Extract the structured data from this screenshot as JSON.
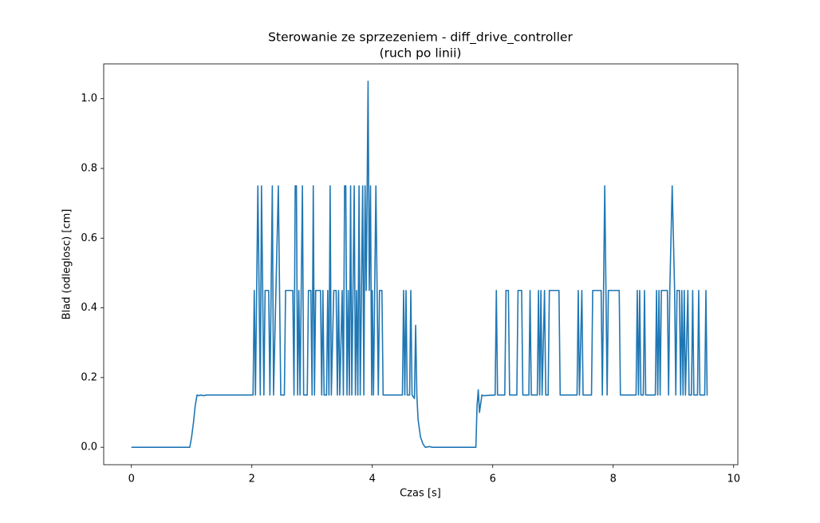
{
  "chart_data": {
    "type": "line",
    "title": "Sterowanie ze sprzezeniem - diff_drive_controller",
    "subtitle": "(ruch po linii)",
    "x_label": "Czas [s]",
    "y_label": "Blad (odleglosc) [cm]",
    "color": "#1f77b4",
    "xlim": [
      -0.46,
      10.07
    ],
    "ylim": [
      -0.05,
      1.1
    ],
    "xticks": [
      0,
      2,
      4,
      6,
      8,
      10
    ],
    "yticks": [
      {
        "value": 0,
        "label": "0.0"
      },
      0.2,
      0.4,
      0.6,
      0.8,
      {
        "value": 1,
        "label": "1.0"
      }
    ],
    "grid": false,
    "x": [
      0,
      0.97,
      1.0,
      1.03,
      1.06,
      1.09,
      1.12,
      1.15,
      1.2,
      1.25,
      2.02,
      2.04,
      2.06,
      2.08,
      2.1,
      2.12,
      2.14,
      2.16,
      2.18,
      2.2,
      2.22,
      2.28,
      2.3,
      2.34,
      2.36,
      2.4,
      2.44,
      2.46,
      2.48,
      2.54,
      2.56,
      2.68,
      2.7,
      2.72,
      2.74,
      2.76,
      2.78,
      2.8,
      2.84,
      2.86,
      2.92,
      2.94,
      2.98,
      3.0,
      3.02,
      3.04,
      3.06,
      3.14,
      3.16,
      3.18,
      3.2,
      3.24,
      3.26,
      3.28,
      3.3,
      3.32,
      3.36,
      3.4,
      3.42,
      3.44,
      3.46,
      3.5,
      3.52,
      3.54,
      3.56,
      3.58,
      3.6,
      3.62,
      3.64,
      3.66,
      3.68,
      3.7,
      3.72,
      3.74,
      3.76,
      3.78,
      3.8,
      3.82,
      3.84,
      3.86,
      3.88,
      3.9,
      3.93,
      3.95,
      3.97,
      3.99,
      4.0,
      4.02,
      4.04,
      4.06,
      4.08,
      4.1,
      4.12,
      4.16,
      4.18,
      4.5,
      4.52,
      4.54,
      4.56,
      4.58,
      4.62,
      4.64,
      4.66,
      4.7,
      4.72,
      4.74,
      4.76,
      4.8,
      4.84,
      4.88,
      4.95,
      5.0,
      5.72,
      5.74,
      5.76,
      5.78,
      5.82,
      5.84,
      6.04,
      6.06,
      6.08,
      6.2,
      6.22,
      6.26,
      6.28,
      6.4,
      6.42,
      6.48,
      6.5,
      6.6,
      6.62,
      6.64,
      6.74,
      6.76,
      6.78,
      6.8,
      6.82,
      6.86,
      6.88,
      6.92,
      6.94,
      7.1,
      7.12,
      7.4,
      7.42,
      7.44,
      7.48,
      7.5,
      7.64,
      7.66,
      7.8,
      7.82,
      7.86,
      7.88,
      7.9,
      7.92,
      8.1,
      8.12,
      8.38,
      8.4,
      8.42,
      8.44,
      8.46,
      8.5,
      8.52,
      8.54,
      8.7,
      8.72,
      8.74,
      8.76,
      8.78,
      8.8,
      8.9,
      8.92,
      8.94,
      8.98,
      9.02,
      9.04,
      9.06,
      9.1,
      9.12,
      9.14,
      9.16,
      9.18,
      9.2,
      9.24,
      9.26,
      9.3,
      9.32,
      9.34,
      9.4,
      9.42,
      9.44,
      9.52,
      9.54,
      9.56,
      9.57
    ],
    "values": [
      0,
      0,
      0.03,
      0.07,
      0.12,
      0.15,
      0.148,
      0.15,
      0.148,
      0.15,
      0.15,
      0.45,
      0.15,
      0.45,
      0.75,
      0.45,
      0.15,
      0.75,
      0.45,
      0.15,
      0.45,
      0.45,
      0.15,
      0.75,
      0.15,
      0.45,
      0.75,
      0.45,
      0.15,
      0.15,
      0.45,
      0.45,
      0.15,
      0.75,
      0.75,
      0.15,
      0.45,
      0.15,
      0.75,
      0.15,
      0.15,
      0.45,
      0.45,
      0.15,
      0.75,
      0.15,
      0.45,
      0.45,
      0.15,
      0.45,
      0.15,
      0.15,
      0.45,
      0.15,
      0.75,
      0.15,
      0.45,
      0.45,
      0.15,
      0.45,
      0.15,
      0.45,
      0.15,
      0.75,
      0.75,
      0.15,
      0.45,
      0.15,
      0.75,
      0.15,
      0.45,
      0.75,
      0.15,
      0.45,
      0.15,
      0.75,
      0.15,
      0.45,
      0.75,
      0.15,
      0.75,
      0.45,
      1.05,
      0.45,
      0.75,
      0.15,
      0.45,
      0.15,
      0.45,
      0.75,
      0.45,
      0.15,
      0.45,
      0.45,
      0.15,
      0.15,
      0.45,
      0.15,
      0.45,
      0.15,
      0.15,
      0.45,
      0.15,
      0.14,
      0.35,
      0.15,
      0.08,
      0.03,
      0.01,
      0,
      0.002,
      0,
      0,
      0.12,
      0.165,
      0.1,
      0.15,
      0.148,
      0.15,
      0.45,
      0.15,
      0.15,
      0.45,
      0.45,
      0.15,
      0.15,
      0.45,
      0.45,
      0.15,
      0.15,
      0.45,
      0.15,
      0.15,
      0.45,
      0.15,
      0.45,
      0.15,
      0.45,
      0.15,
      0.15,
      0.45,
      0.45,
      0.15,
      0.15,
      0.45,
      0.15,
      0.45,
      0.15,
      0.15,
      0.45,
      0.45,
      0.15,
      0.75,
      0.45,
      0.15,
      0.45,
      0.45,
      0.15,
      0.15,
      0.45,
      0.15,
      0.45,
      0.15,
      0.15,
      0.45,
      0.15,
      0.15,
      0.45,
      0.15,
      0.45,
      0.15,
      0.45,
      0.45,
      0.15,
      0.45,
      0.75,
      0.45,
      0.15,
      0.45,
      0.45,
      0.15,
      0.45,
      0.15,
      0.45,
      0.15,
      0.45,
      0.15,
      0.15,
      0.45,
      0.15,
      0.15,
      0.45,
      0.15,
      0.15,
      0.45,
      0.15,
      0.15
    ]
  }
}
